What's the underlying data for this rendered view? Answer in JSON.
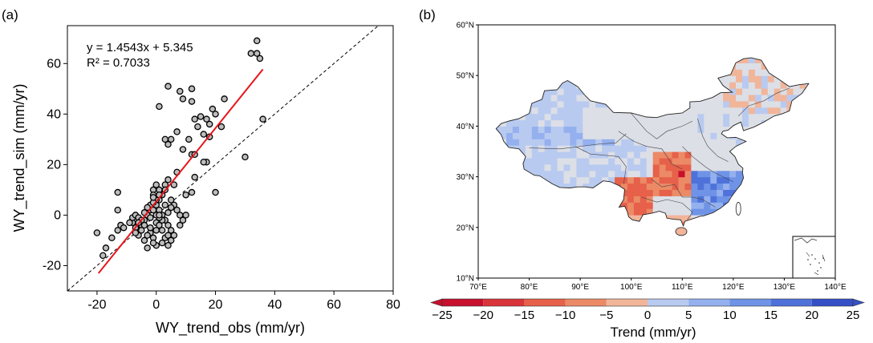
{
  "panels": {
    "a_label": "(a)",
    "b_label": "(b)"
  },
  "chart_data": [
    {
      "type": "scatter",
      "panel": "(a)",
      "xlabel": "WY_trend_obs (mm/yr)",
      "ylabel": "WY_trend_sim (mm/yr)",
      "xlim": [
        -30,
        80
      ],
      "ylim": [
        -30,
        75
      ],
      "xticks": [
        -20,
        0,
        20,
        40,
        60,
        80
      ],
      "yticks": [
        -20,
        0,
        20,
        40,
        60
      ],
      "xtick_labels": [
        "-20",
        "0",
        "20",
        "40",
        "60",
        "80"
      ],
      "ytick_labels": [
        "-20",
        "0",
        "20",
        "40",
        "60"
      ],
      "grid": false,
      "equation_text": "y = 1.4543x + 5.345",
      "r2_text": "R² = 0.7033",
      "fit": {
        "slope": 1.4543,
        "intercept": 5.345,
        "x_range": [
          -19.5,
          36
        ],
        "color": "#e8141a"
      },
      "one_to_one_line": {
        "style": "dashed",
        "color": "#000000"
      },
      "marker_fill": "#bdbdbd",
      "marker_edge": "#000000",
      "points": [
        [
          34,
          69
        ],
        [
          32,
          64
        ],
        [
          34,
          64
        ],
        [
          35,
          62
        ],
        [
          36,
          38
        ],
        [
          30,
          23
        ],
        [
          23,
          46
        ],
        [
          20,
          40
        ],
        [
          19,
          42
        ],
        [
          17,
          38
        ],
        [
          16,
          32
        ],
        [
          18,
          31
        ],
        [
          18,
          36
        ],
        [
          22,
          35
        ],
        [
          12,
          45
        ],
        [
          12,
          50
        ],
        [
          13,
          38
        ],
        [
          14,
          35
        ],
        [
          15,
          39
        ],
        [
          8,
          49
        ],
        [
          4,
          51
        ],
        [
          9,
          46
        ],
        [
          1,
          43
        ],
        [
          11,
          30
        ],
        [
          12,
          24
        ],
        [
          17,
          21
        ],
        [
          16,
          21
        ],
        [
          20,
          9
        ],
        [
          13,
          15
        ],
        [
          10,
          8
        ],
        [
          12,
          9
        ],
        [
          13,
          24
        ],
        [
          9,
          26
        ],
        [
          7,
          33
        ],
        [
          4,
          28
        ],
        [
          3,
          30
        ],
        [
          5,
          30
        ],
        [
          7,
          17
        ],
        [
          6,
          12
        ],
        [
          4,
          14
        ],
        [
          3,
          12
        ],
        [
          3,
          10
        ],
        [
          2,
          8
        ],
        [
          1,
          6
        ],
        [
          1,
          10
        ],
        [
          0,
          12
        ],
        [
          -1,
          10
        ],
        [
          -1,
          8
        ],
        [
          0,
          6
        ],
        [
          0,
          4
        ],
        [
          1,
          2
        ],
        [
          2,
          0
        ],
        [
          3,
          -2
        ],
        [
          4,
          -4
        ],
        [
          5,
          -6
        ],
        [
          6,
          -8
        ],
        [
          8,
          -4
        ],
        [
          9,
          -2
        ],
        [
          10,
          0
        ],
        [
          8,
          0
        ],
        [
          7,
          2
        ],
        [
          6,
          4
        ],
        [
          5,
          6
        ],
        [
          -2,
          2
        ],
        [
          -3,
          0
        ],
        [
          -4,
          -2
        ],
        [
          -5,
          -4
        ],
        [
          -6,
          -6
        ],
        [
          -2,
          -7
        ],
        [
          -1,
          -9
        ],
        [
          0,
          -12
        ],
        [
          3,
          -9
        ],
        [
          4,
          -12
        ],
        [
          -1,
          -11
        ],
        [
          -3,
          -13
        ],
        [
          -4,
          -10
        ],
        [
          -6,
          -8
        ],
        [
          -7,
          -5
        ],
        [
          -8,
          -3
        ],
        [
          -9,
          -3
        ],
        [
          -8,
          -1
        ],
        [
          -7,
          0
        ],
        [
          -6,
          -1
        ],
        [
          -5,
          -2
        ],
        [
          -4,
          -4
        ],
        [
          -2,
          -5
        ],
        [
          0,
          -3
        ],
        [
          1,
          -4
        ],
        [
          2,
          -6
        ],
        [
          2,
          -2
        ],
        [
          1,
          -1
        ],
        [
          0,
          0
        ],
        [
          -1,
          2
        ],
        [
          -2,
          4
        ],
        [
          -3,
          3
        ],
        [
          -1,
          5
        ],
        [
          -1,
          7
        ],
        [
          1,
          8
        ],
        [
          2,
          -11
        ],
        [
          4,
          -8
        ],
        [
          5,
          -10
        ],
        [
          -5,
          -6
        ],
        [
          -13,
          9
        ],
        [
          -13,
          2
        ],
        [
          -12,
          -4
        ],
        [
          -13,
          -6
        ],
        [
          -15,
          -9
        ],
        [
          -17,
          -13
        ],
        [
          -18,
          -16
        ],
        [
          -20,
          -7
        ],
        [
          -11,
          -5
        ],
        [
          3,
          4
        ],
        [
          4,
          1
        ],
        [
          5,
          3
        ],
        [
          -2,
          -1
        ],
        [
          -4,
          1
        ],
        [
          -6,
          -3
        ],
        [
          -7,
          -7
        ],
        [
          -3,
          -8
        ],
        [
          0,
          -6
        ],
        [
          1,
          0
        ]
      ]
    },
    {
      "type": "heatmap",
      "panel": "(b)",
      "xticks": [
        70,
        80,
        90,
        100,
        110,
        120,
        130,
        140
      ],
      "xtick_labels": [
        "70°E",
        "80°E",
        "90°E",
        "100°E",
        "110°E",
        "120°E",
        "130°E",
        "140°E"
      ],
      "yticks": [
        10,
        20,
        30,
        40,
        50,
        60
      ],
      "ytick_labels": [
        "10°N",
        "20°N",
        "30°N",
        "40°N",
        "50°N",
        "60°N"
      ],
      "xlim": [
        70,
        140
      ],
      "ylim": [
        10,
        60
      ],
      "colorbar": {
        "title": "Trend (mm/yr)",
        "bounds": [
          -25,
          -20,
          -15,
          -10,
          -5,
          0,
          5,
          10,
          15,
          20,
          25
        ],
        "tick_labels": [
          "−25",
          "−20",
          "−15",
          "−10",
          "−5",
          "0",
          "5",
          "10",
          "15",
          "20",
          "25"
        ],
        "colors": [
          "#c8102e",
          "#d9343a",
          "#e6604a",
          "#ec8a66",
          "#f1b59a",
          "#dcdfe6",
          "#b9caf0",
          "#94b0ee",
          "#6f93e6",
          "#4f72da",
          "#3550c6"
        ],
        "extend": "both"
      }
    }
  ]
}
